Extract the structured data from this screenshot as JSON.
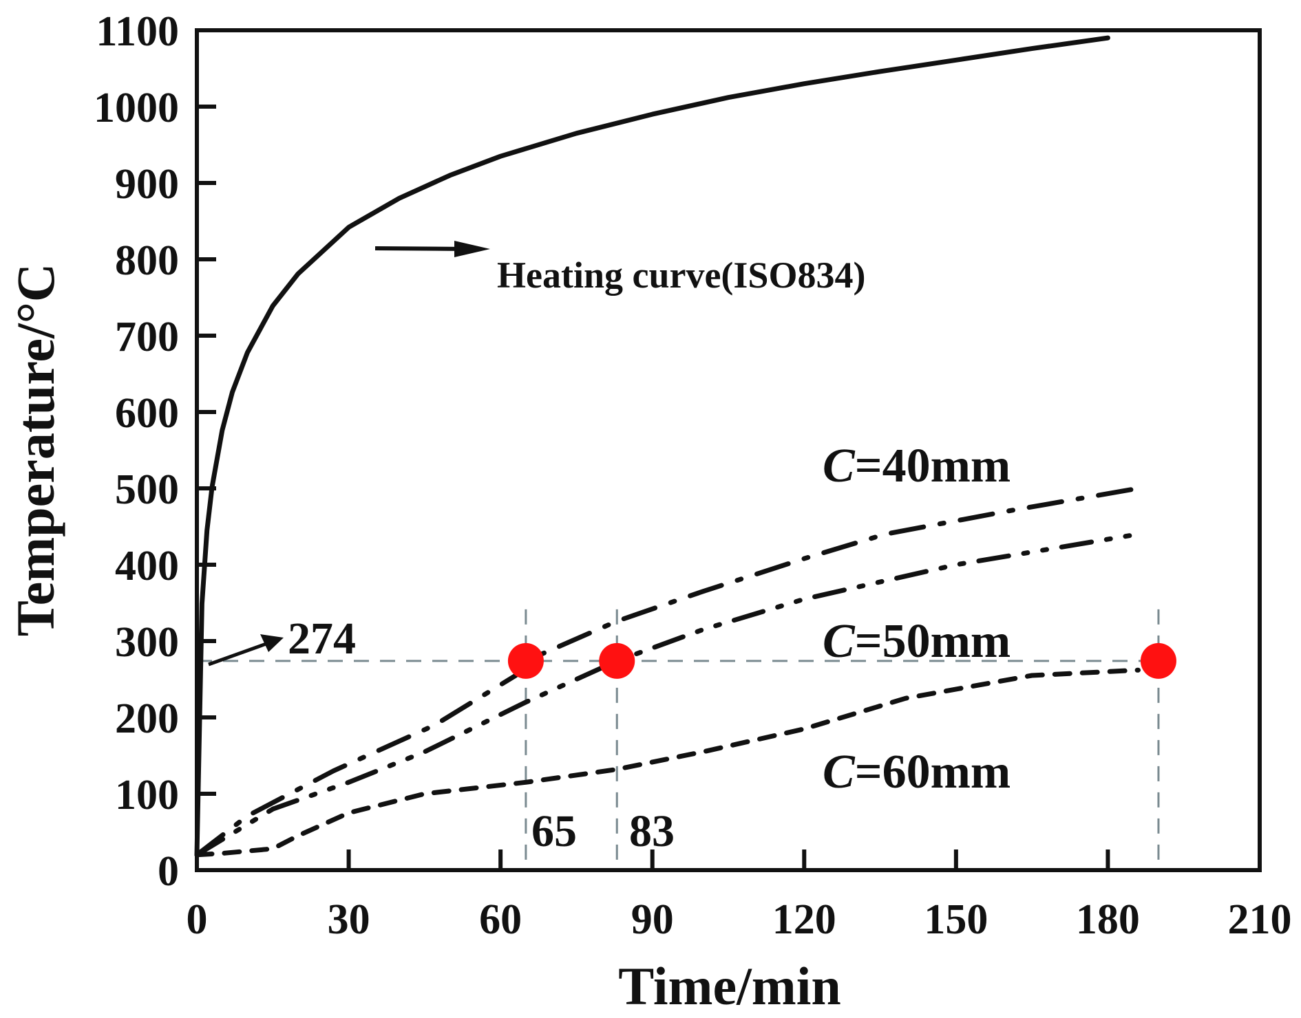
{
  "chart_data": {
    "type": "line",
    "title": "",
    "xlabel": "Time/min",
    "ylabel": "Temperature/°C",
    "xlim": [
      0,
      210
    ],
    "ylim": [
      0,
      1100
    ],
    "xticks": [
      "0",
      "30",
      "60",
      "90",
      "120",
      "150",
      "180",
      "210"
    ],
    "xtick_values": [
      0,
      30,
      60,
      90,
      120,
      150,
      180,
      210
    ],
    "yticks": [
      "0",
      "100",
      "200",
      "300",
      "400",
      "500",
      "600",
      "700",
      "800",
      "900",
      "1000",
      "1100"
    ],
    "ytick_values": [
      0,
      100,
      200,
      300,
      400,
      500,
      600,
      700,
      800,
      900,
      1000,
      1100
    ],
    "grid": false,
    "series": [
      {
        "name": "Heating curve(ISO834)",
        "style": "solid",
        "x": [
          0,
          1,
          2,
          3,
          5,
          7,
          10,
          15,
          20,
          30,
          40,
          50,
          60,
          75,
          90,
          105,
          120,
          135,
          150,
          165,
          180
        ],
        "y": [
          20,
          349,
          445,
          502,
          576,
          626,
          678,
          739,
          781,
          842,
          880,
          910,
          935,
          965,
          990,
          1012,
          1030,
          1046,
          1061,
          1076,
          1090
        ]
      },
      {
        "name": "C=40mm",
        "style": "dash-dot",
        "x": [
          0,
          10,
          27,
          47,
          63,
          65,
          83,
          100,
          120,
          136,
          160,
          186
        ],
        "y": [
          20,
          71,
          130,
          190,
          255,
          274,
          326,
          365,
          408,
          440,
          470,
          500
        ]
      },
      {
        "name": "C=50mm",
        "style": "dash-dot-dot",
        "x": [
          0,
          15,
          30,
          45,
          65,
          83,
          100,
          120,
          150,
          186
        ],
        "y": [
          20,
          80,
          115,
          155,
          220,
          274,
          315,
          355,
          400,
          440
        ]
      },
      {
        "name": "C=60mm",
        "style": "dash",
        "x": [
          0,
          5,
          15,
          20,
          30,
          45,
          65,
          83,
          100,
          120,
          140,
          165,
          186
        ],
        "y": [
          20,
          22,
          28,
          45,
          75,
          100,
          115,
          132,
          155,
          185,
          225,
          255,
          262
        ]
      }
    ],
    "threshold": {
      "y": 274,
      "label": "274"
    },
    "markers": [
      {
        "x": 65,
        "y": 274,
        "label": "65"
      },
      {
        "x": 83,
        "y": 274,
        "label": "83"
      },
      {
        "x": 190,
        "y": 274,
        "label": ""
      }
    ],
    "annotations": {
      "heating": "Heating curve(ISO834)",
      "c40_italic": "C",
      "c40_rest": "=40mm",
      "c50_italic": "C",
      "c50_rest": "=50mm",
      "c60_italic": "C",
      "c60_rest": "=60mm"
    },
    "colors": {
      "line": "#111111",
      "marker": "#ff1111",
      "guide": "#7a8a90"
    }
  }
}
